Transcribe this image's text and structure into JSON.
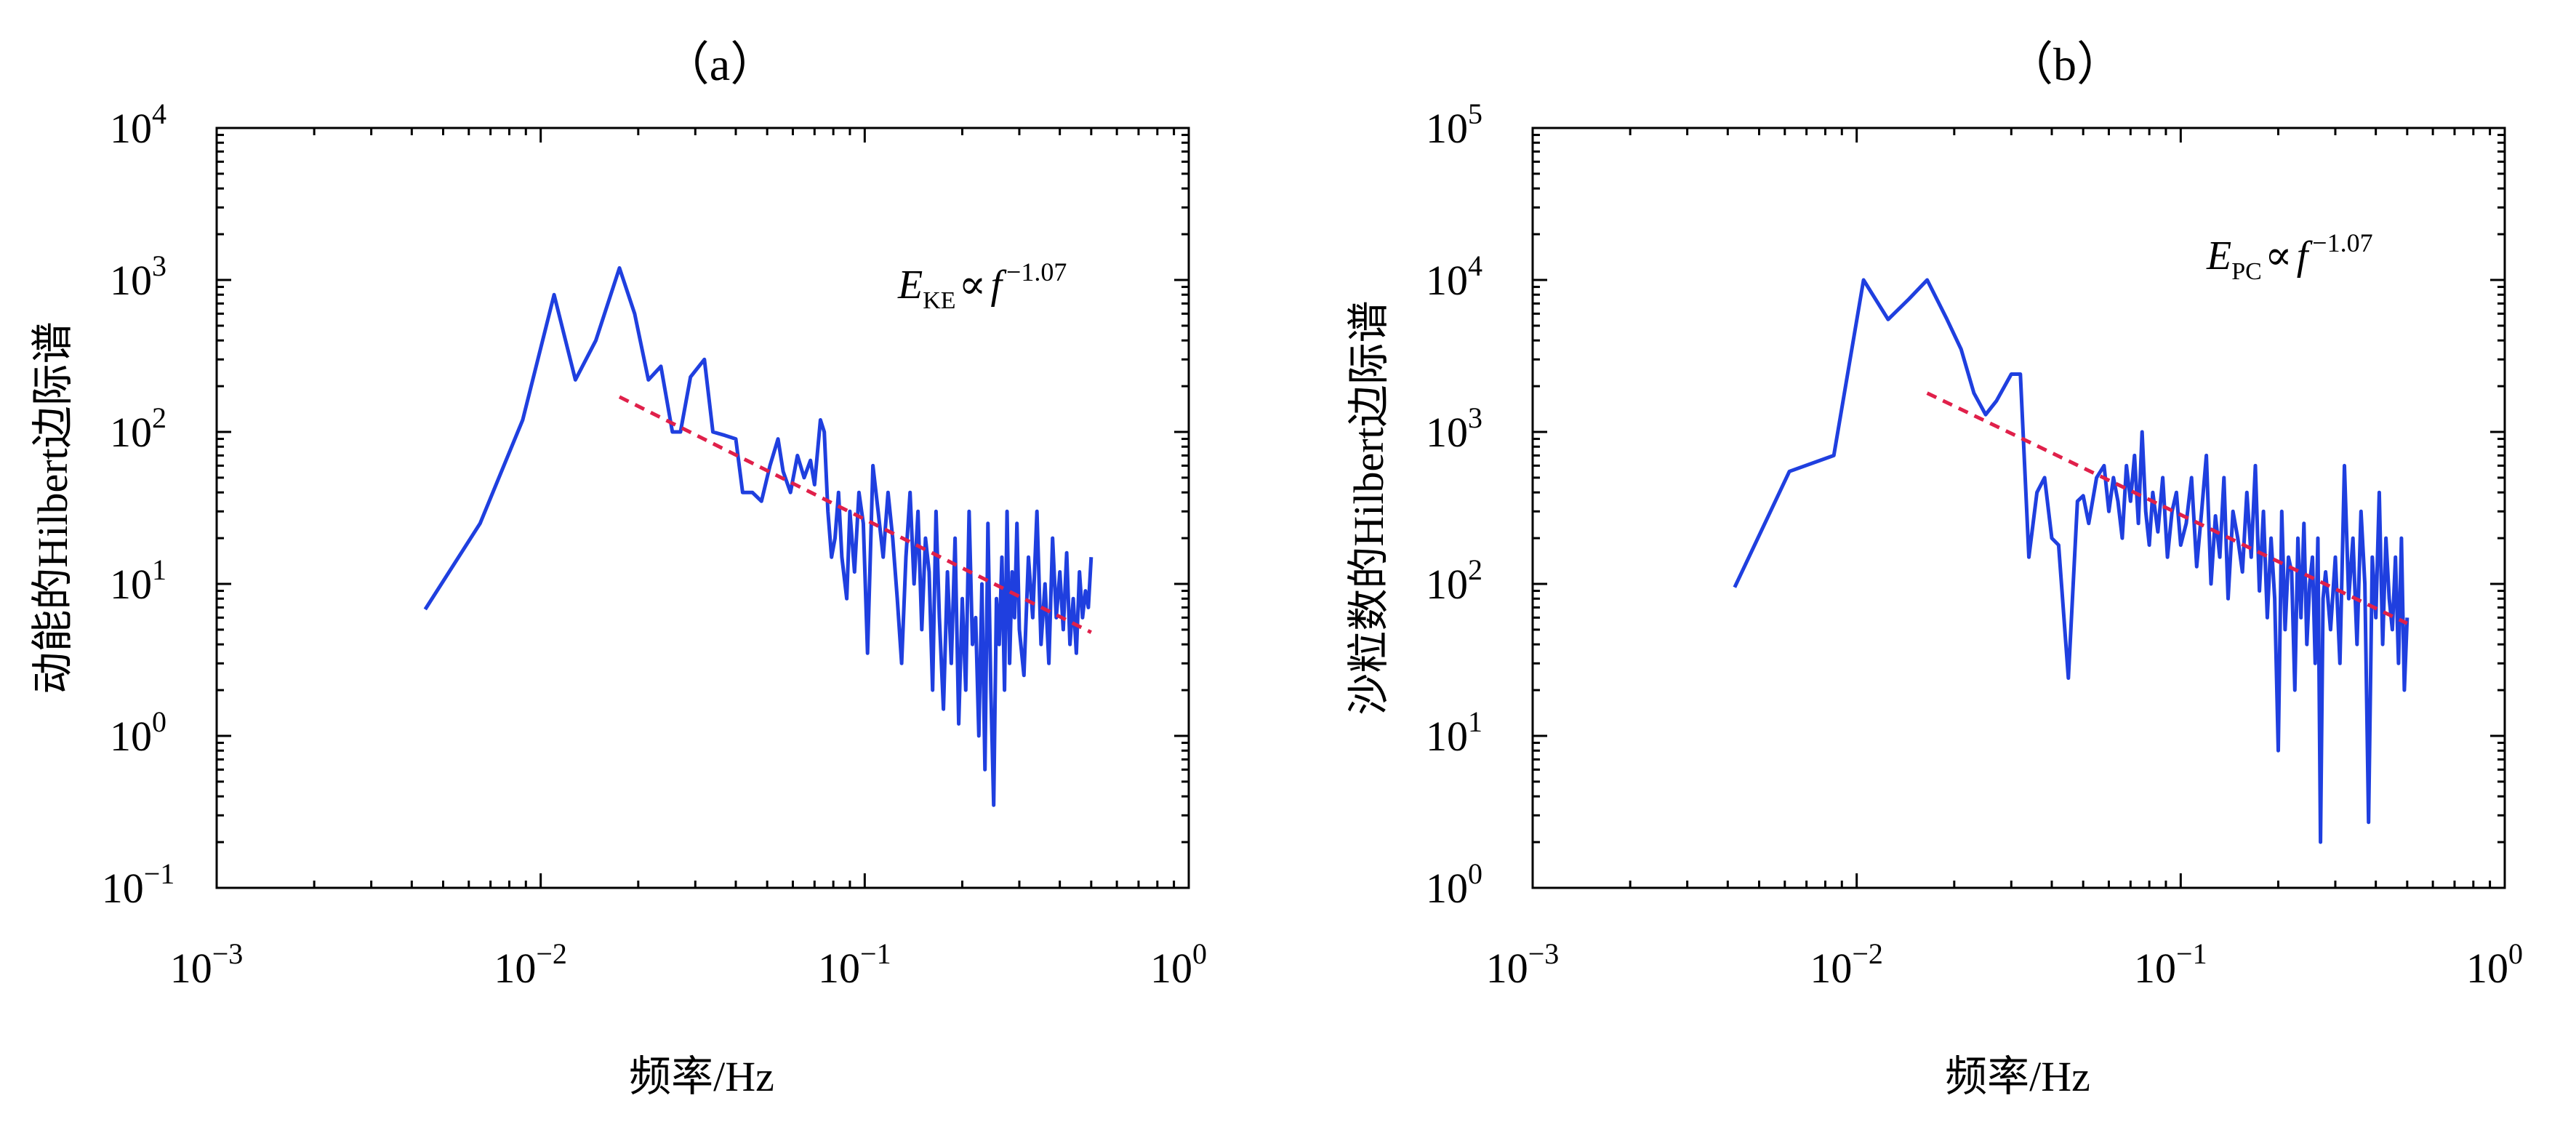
{
  "chart_data": [
    {
      "type": "line",
      "panel_label": "（a）",
      "xlabel": "频率/Hz",
      "ylabel": "动能的Hilbert边际谱",
      "xscale": "log",
      "yscale": "log",
      "xlim": [
        0.001,
        1
      ],
      "ylim": [
        0.1,
        10000
      ],
      "x_tick_labels": [
        "10−3",
        "10−2",
        "10−1",
        "100"
      ],
      "y_tick_labels": [
        "10−1",
        "100",
        "101",
        "102",
        "103",
        "104"
      ],
      "annotation": {
        "main": "E",
        "subscript": "KE",
        "proportional": "∝",
        "variable": "f",
        "exponent": "−1.07"
      },
      "colors": {
        "series": "#1f3fdf",
        "fit": "#e0204a"
      },
      "series": [
        {
          "style": "solid",
          "x": [
            0.0044,
            0.0065,
            0.0088,
            0.011,
            0.0128,
            0.0148,
            0.0175,
            0.0195,
            0.0215,
            0.0235,
            0.0255,
            0.027,
            0.029,
            0.032,
            0.034,
            0.037,
            0.04,
            0.042,
            0.045,
            0.048,
            0.051,
            0.054,
            0.056,
            0.059,
            0.062,
            0.065,
            0.068,
            0.07,
            0.073,
            0.075,
            0.077,
            0.079,
            0.081,
            0.083,
            0.085,
            0.088,
            0.09,
            0.093,
            0.096,
            0.099,
            0.102,
            0.106,
            0.11,
            0.114,
            0.118,
            0.122,
            0.126,
            0.13,
            0.134,
            0.138,
            0.142,
            0.146,
            0.15,
            0.154,
            0.158,
            0.162,
            0.166,
            0.17,
            0.175,
            0.18,
            0.185,
            0.19,
            0.195,
            0.2,
            0.205,
            0.21,
            0.215,
            0.22,
            0.225,
            0.23,
            0.235,
            0.24,
            0.245,
            0.25,
            0.255,
            0.26,
            0.265,
            0.27,
            0.275,
            0.28,
            0.285,
            0.29,
            0.295,
            0.3,
            0.31,
            0.32,
            0.33,
            0.34,
            0.35,
            0.36,
            0.37,
            0.38,
            0.39,
            0.4,
            0.41,
            0.42,
            0.43,
            0.44,
            0.45,
            0.46,
            0.47,
            0.48,
            0.49,
            0.5
          ],
          "y": [
            6.8,
            25,
            120,
            800,
            220,
            400,
            1200,
            600,
            220,
            270,
            100,
            100,
            230,
            300,
            100,
            95,
            90,
            40,
            40,
            35,
            60,
            90,
            55,
            40,
            70,
            50,
            65,
            45,
            120,
            100,
            30,
            15,
            20,
            40,
            15,
            8,
            30,
            12,
            40,
            25,
            3.5,
            60,
            30,
            15,
            40,
            20,
            8,
            3,
            15,
            40,
            10,
            30,
            5,
            20,
            12,
            2,
            30,
            6,
            1.5,
            12,
            3,
            20,
            1.2,
            8,
            2,
            30,
            4,
            6,
            1,
            10,
            0.6,
            25,
            2,
            0.35,
            8,
            4,
            15,
            2,
            30,
            3,
            12,
            6,
            25,
            5,
            2.5,
            15,
            6,
            30,
            4,
            10,
            3,
            20,
            6,
            12,
            5,
            16,
            4,
            8,
            3.5,
            12,
            6,
            9,
            7,
            15
          ]
        },
        {
          "style": "dashed",
          "x": [
            0.0175,
            0.5
          ],
          "y": [
            170,
            4.8
          ]
        }
      ]
    },
    {
      "type": "line",
      "panel_label": "（b）",
      "xlabel": "频率/Hz",
      "ylabel": "沙粒数的Hilbert边际谱",
      "xscale": "log",
      "yscale": "log",
      "xlim": [
        0.001,
        1
      ],
      "ylim": [
        1,
        100000
      ],
      "x_tick_labels": [
        "10−3",
        "10−2",
        "10−1",
        "100"
      ],
      "y_tick_labels": [
        "100",
        "101",
        "102",
        "103",
        "104",
        "105"
      ],
      "annotation": {
        "main": "E",
        "subscript": "PC",
        "proportional": "∝",
        "variable": "f",
        "exponent": "−1.07"
      },
      "colors": {
        "series": "#1f3fdf",
        "fit": "#e0204a"
      },
      "series": [
        {
          "style": "solid",
          "x": [
            0.0042,
            0.0062,
            0.0085,
            0.0105,
            0.0125,
            0.0145,
            0.0165,
            0.019,
            0.021,
            0.023,
            0.025,
            0.027,
            0.03,
            0.032,
            0.034,
            0.036,
            0.038,
            0.04,
            0.042,
            0.045,
            0.048,
            0.05,
            0.052,
            0.055,
            0.058,
            0.06,
            0.062,
            0.064,
            0.066,
            0.068,
            0.07,
            0.072,
            0.074,
            0.076,
            0.078,
            0.08,
            0.082,
            0.085,
            0.088,
            0.091,
            0.094,
            0.097,
            0.1,
            0.104,
            0.108,
            0.112,
            0.116,
            0.12,
            0.124,
            0.128,
            0.132,
            0.136,
            0.14,
            0.145,
            0.15,
            0.155,
            0.16,
            0.165,
            0.17,
            0.175,
            0.18,
            0.185,
            0.19,
            0.195,
            0.2,
            0.205,
            0.21,
            0.215,
            0.22,
            0.225,
            0.23,
            0.235,
            0.24,
            0.245,
            0.25,
            0.255,
            0.26,
            0.265,
            0.27,
            0.275,
            0.28,
            0.29,
            0.3,
            0.31,
            0.32,
            0.33,
            0.34,
            0.35,
            0.36,
            0.37,
            0.38,
            0.39,
            0.4,
            0.41,
            0.42,
            0.43,
            0.44,
            0.45,
            0.46,
            0.47,
            0.48,
            0.49,
            0.5
          ],
          "y": [
            95,
            550,
            700,
            10000,
            5500,
            7500,
            10000,
            5500,
            3500,
            1800,
            1300,
            1600,
            2400,
            2400,
            150,
            400,
            500,
            200,
            180,
            24,
            350,
            380,
            250,
            500,
            600,
            300,
            500,
            350,
            200,
            600,
            350,
            700,
            250,
            1000,
            300,
            180,
            400,
            220,
            500,
            150,
            300,
            400,
            180,
            250,
            500,
            130,
            300,
            700,
            100,
            280,
            150,
            500,
            80,
            300,
            200,
            120,
            400,
            150,
            600,
            90,
            300,
            60,
            200,
            80,
            8,
            300,
            50,
            150,
            120,
            20,
            200,
            60,
            250,
            40,
            100,
            150,
            30,
            200,
            2,
            80,
            120,
            50,
            150,
            30,
            600,
            80,
            200,
            40,
            300,
            100,
            2.7,
            150,
            60,
            400,
            40,
            200,
            80,
            50,
            150,
            30,
            200,
            20,
            60
          ]
        },
        {
          "style": "dashed",
          "x": [
            0.0165,
            0.5
          ],
          "y": [
            1800,
            55
          ]
        }
      ]
    }
  ]
}
